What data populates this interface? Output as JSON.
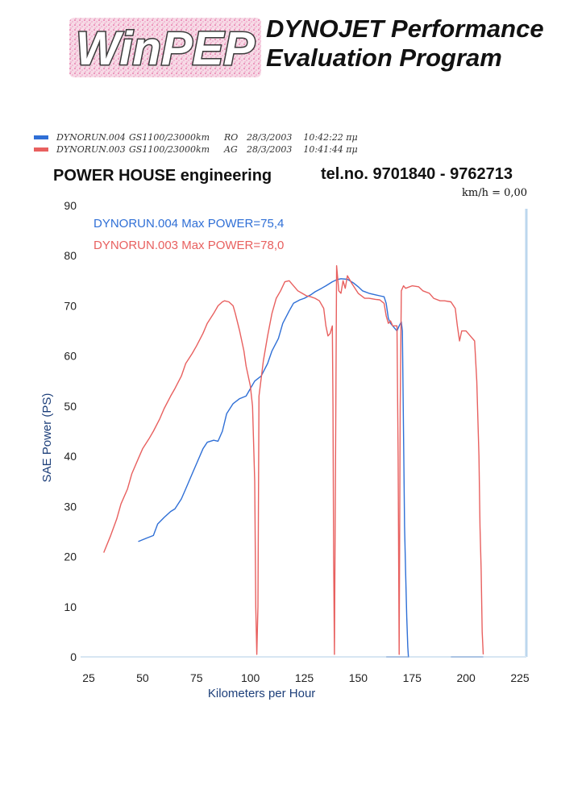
{
  "header": {
    "logo_text": "WinPEP",
    "title_line1": "DYNOJET Performance",
    "title_line2": "Evaluation Program"
  },
  "legend": [
    {
      "run": "DYNORUN.004",
      "bike": "GS1100/23000km",
      "code": "RO",
      "date": "28/3/2003",
      "time": "10:42:22 πμ",
      "color": "#2f6fd6"
    },
    {
      "run": "DYNORUN.003",
      "bike": "GS1100/23000km",
      "code": "AG",
      "date": "28/3/2003",
      "time": "10:41:44 πμ",
      "color": "#e8605f"
    }
  ],
  "info": {
    "company": "POWER HOUSE engineering",
    "tel": "tel.no. 9701840 - 9762713",
    "speed_readout": "km/h = 0,00"
  },
  "chart_data": {
    "type": "line",
    "xlabel": "Kilometers per Hour",
    "ylabel": "SAE Power (PS)",
    "xlim": [
      25,
      225
    ],
    "ylim": [
      0,
      90
    ],
    "xticks": [
      25,
      50,
      75,
      100,
      125,
      150,
      175,
      200,
      225
    ],
    "yticks": [
      0,
      10,
      20,
      30,
      40,
      50,
      60,
      70,
      80,
      90
    ],
    "grid": false,
    "annotations": [
      {
        "text": "DYNORUN.004  Max POWER=75,4",
        "color": "#2f6fd6"
      },
      {
        "text": "DYNORUN.003  Max POWER=78,0",
        "color": "#e8605f"
      }
    ],
    "series": [
      {
        "name": "DYNORUN.004",
        "color": "#2f6fd6",
        "x": [
          48,
          52,
          55,
          57,
          60,
          63,
          65,
          68,
          70,
          73,
          75,
          78,
          80,
          83,
          85,
          87,
          89,
          92,
          95,
          98,
          100,
          102,
          105,
          108,
          110,
          113,
          115,
          118,
          120,
          123,
          125,
          128,
          130,
          133,
          135,
          138,
          140,
          142,
          145,
          148,
          150,
          152,
          155,
          158,
          160,
          162,
          163,
          164,
          165,
          166,
          167,
          168,
          169,
          170,
          170.5,
          171,
          171.5,
          172,
          172.5,
          173,
          173.3,
          173.5
        ],
        "y": [
          23,
          23.7,
          24.2,
          26.5,
          27.8,
          29,
          29.5,
          31.5,
          33.5,
          36.5,
          38.5,
          41.5,
          42.8,
          43.2,
          43,
          45,
          48.5,
          50.5,
          51.5,
          52,
          53.5,
          55,
          56,
          58.5,
          61,
          63.5,
          66.5,
          69,
          70.5,
          71.2,
          71.5,
          72.2,
          72.8,
          73.5,
          74,
          74.8,
          75.2,
          75.4,
          75.3,
          74.5,
          73.8,
          73,
          72.5,
          72.2,
          72,
          71.8,
          70.5,
          67.5,
          66.5,
          66,
          65.5,
          65,
          66,
          66.8,
          65,
          45,
          26,
          17,
          8,
          2,
          0,
          0
        ]
      },
      {
        "name": "DYNORUN.003",
        "color": "#e8605f",
        "x": [
          32,
          35,
          38,
          40,
          43,
          45,
          48,
          50,
          53,
          55,
          58,
          60,
          63,
          65,
          68,
          70,
          73,
          75,
          78,
          80,
          83,
          85,
          87,
          88,
          90,
          92,
          93,
          95,
          97,
          98,
          100,
          101,
          102,
          102.5,
          103,
          103.5,
          104,
          106,
          108,
          110,
          112,
          114,
          116,
          118,
          120,
          122,
          124,
          126,
          128,
          130,
          132,
          134,
          135,
          136,
          137,
          138,
          138.3,
          138.6,
          139,
          139.5,
          140,
          141,
          142,
          143,
          144,
          145,
          147,
          150,
          153,
          155,
          158,
          160,
          162,
          163,
          164,
          165,
          166,
          167,
          168,
          168.5,
          169,
          169.5,
          170,
          171,
          172,
          175,
          178,
          180,
          183,
          185,
          188,
          190,
          193,
          195,
          196,
          197,
          198,
          200,
          202,
          204,
          205,
          206,
          206.5,
          207,
          207.5,
          208
        ],
        "y": [
          20.8,
          24,
          27.5,
          30.5,
          33.5,
          36.5,
          39.5,
          41.5,
          43.5,
          45,
          47.5,
          49.5,
          52,
          53.5,
          56,
          58.5,
          60.5,
          62,
          64.5,
          66.5,
          68.5,
          70,
          70.8,
          71,
          70.8,
          70,
          68.5,
          65,
          61,
          58,
          54,
          50,
          35,
          10,
          0.5,
          10,
          52,
          59,
          64,
          68.5,
          71.5,
          73,
          74.8,
          75,
          74,
          73,
          72.5,
          72,
          71.8,
          71.5,
          71,
          69.5,
          66,
          64,
          64.5,
          66,
          50,
          20,
          0.5,
          40,
          78,
          73,
          72.5,
          75,
          73.5,
          76,
          74.5,
          72.5,
          71.5,
          71.5,
          71.3,
          71.2,
          70.5,
          68,
          66.5,
          67,
          66,
          66,
          66,
          40,
          0.5,
          50,
          73,
          74,
          73.5,
          74,
          73.8,
          73,
          72.5,
          71.5,
          71,
          71,
          70.8,
          69.5,
          66,
          63,
          65,
          65,
          64,
          63,
          55,
          40,
          26,
          17.5,
          5,
          0.5
        ]
      }
    ]
  }
}
